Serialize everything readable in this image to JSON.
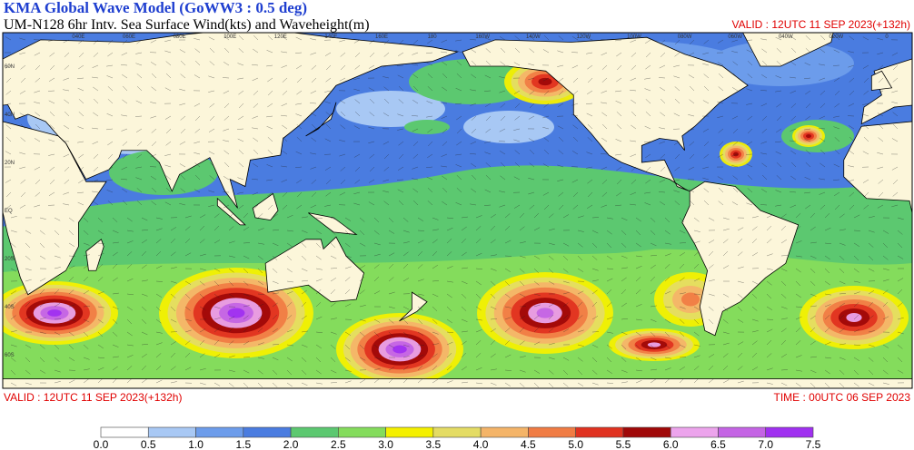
{
  "header": {
    "title": "KMA  Global Wave Model (GoWW3 : 0.5 deg)",
    "subtitle": "UM-N128  6hr Intv. Sea Surface Wind(kts) and Waveheight(m)",
    "valid": "VALID : 12UTC 11 SEP 2023(+132h)"
  },
  "map": {
    "lon_labels": [
      "040E",
      "060E",
      "080E",
      "100E",
      "120E",
      "140E",
      "160E",
      "180",
      "160W",
      "140W",
      "120W",
      "100W",
      "080W",
      "060W",
      "040W",
      "020W",
      "0"
    ],
    "lat_labels": [
      "60N",
      "40N",
      "20N",
      "EQ",
      "20S",
      "40S",
      "60S"
    ]
  },
  "footer": {
    "valid": "VALID : 12UTC 11 SEP 2023(+132h)",
    "time": "TIME : 00UTC 06 SEP 2023"
  },
  "colorbar": {
    "labels": [
      "0.0",
      "0.5",
      "1.0",
      "1.5",
      "2.0",
      "2.5",
      "3.0",
      "3.5",
      "4.0",
      "4.5",
      "5.0",
      "5.5",
      "6.0",
      "6.5",
      "7.0",
      "7.5"
    ],
    "colors": [
      "#ffffff",
      "#a8c8f4",
      "#6c9ceb",
      "#4a7ce0",
      "#5cc870",
      "#84dc5c",
      "#f4f000",
      "#e4dc64",
      "#f4b468",
      "#f07c44",
      "#e03220",
      "#a00808",
      "#eca4ec",
      "#c464e4",
      "#a030f0"
    ]
  }
}
